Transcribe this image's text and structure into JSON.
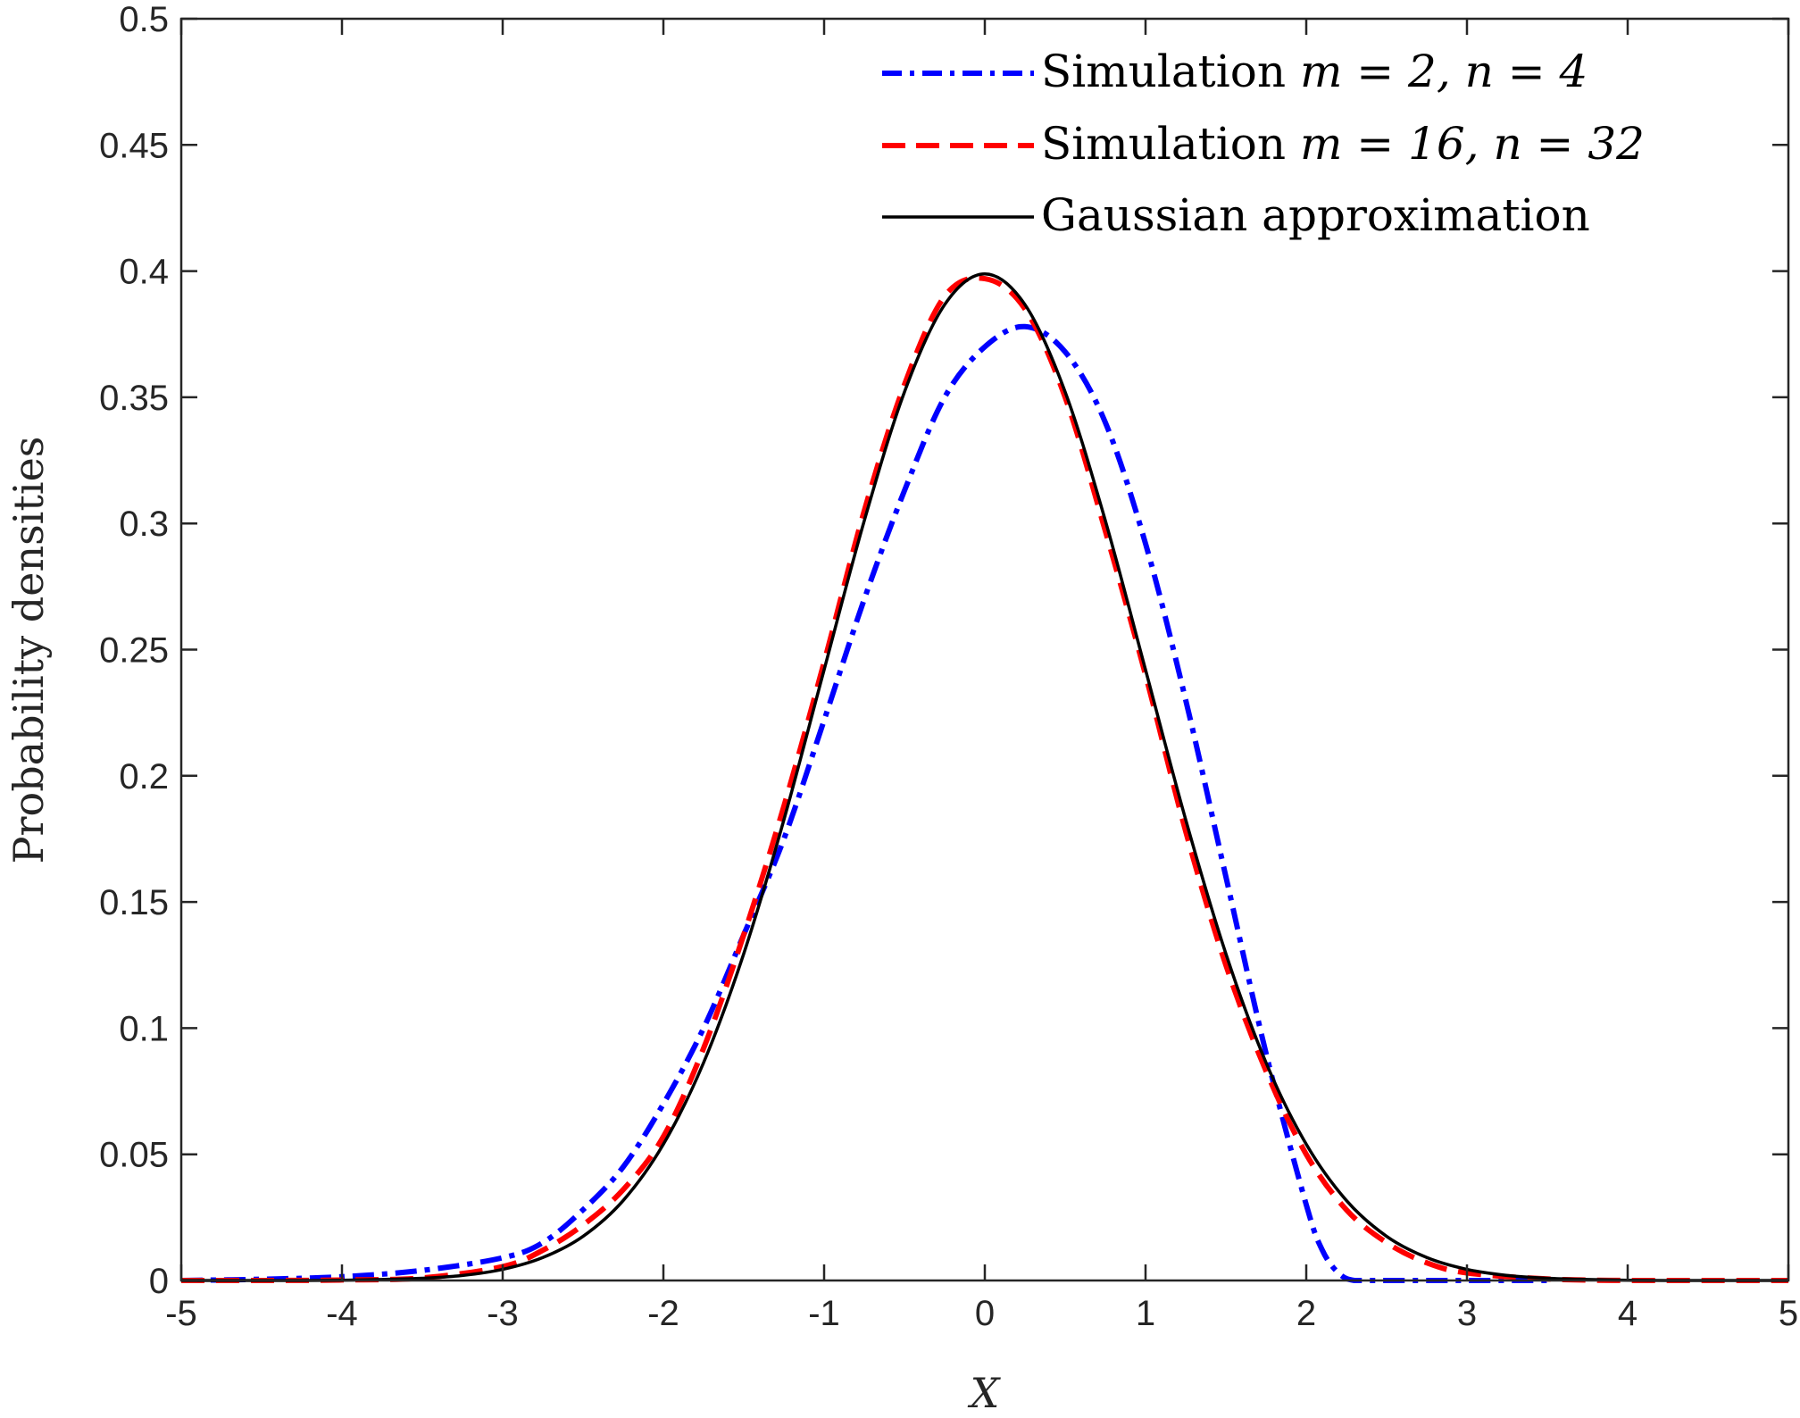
{
  "chart_data": {
    "type": "line",
    "xlabel": "X",
    "ylabel": "Probability densities",
    "xlim": [
      -5,
      5
    ],
    "ylim": [
      0,
      0.5
    ],
    "xticks": [
      -5,
      -4,
      -3,
      -2,
      -1,
      0,
      1,
      2,
      3,
      4,
      5
    ],
    "yticks": [
      0,
      0.05,
      0.1,
      0.15,
      0.2,
      0.25,
      0.3,
      0.35,
      0.4,
      0.45,
      0.5
    ],
    "xtick_labels": [
      "-5",
      "-4",
      "-3",
      "-2",
      "-1",
      "0",
      "1",
      "2",
      "3",
      "4",
      "5"
    ],
    "ytick_labels": [
      "0",
      "0.05",
      "0.1",
      "0.15",
      "0.2",
      "0.25",
      "0.3",
      "0.35",
      "0.4",
      "0.45",
      "0.5"
    ],
    "grid": false,
    "legend_position": "top-right",
    "series": [
      {
        "name": "Simulation m = 2, n = 4",
        "color": "#0000ff",
        "style": "dashdot",
        "x": [
          -5,
          -4.5,
          -4,
          -3.5,
          -3,
          -2.75,
          -2.5,
          -2.25,
          -2,
          -1.75,
          -1.5,
          -1.25,
          -1,
          -0.75,
          -0.5,
          -0.25,
          0,
          0.25,
          0.5,
          0.75,
          1,
          1.25,
          1.5,
          1.75,
          2,
          2.1,
          2.2,
          2.3,
          2.5,
          3,
          3.5
        ],
        "y": [
          0,
          0.0005,
          0.0015,
          0.004,
          0.009,
          0.015,
          0.028,
          0.045,
          0.07,
          0.1,
          0.137,
          0.175,
          0.222,
          0.27,
          0.313,
          0.35,
          0.37,
          0.378,
          0.368,
          0.34,
          0.292,
          0.23,
          0.16,
          0.09,
          0.03,
          0.012,
          0.003,
          0,
          0,
          0,
          0
        ]
      },
      {
        "name": "Simulation m = 16, n = 32",
        "color": "#ff0000",
        "style": "dashed",
        "x": [
          -5,
          -4.5,
          -4,
          -3.5,
          -3,
          -2.75,
          -2.5,
          -2.25,
          -2,
          -1.75,
          -1.5,
          -1.25,
          -1,
          -0.75,
          -0.5,
          -0.25,
          0,
          0.25,
          0.5,
          0.75,
          1,
          1.25,
          1.5,
          1.75,
          2,
          2.25,
          2.5,
          2.75,
          3,
          3.5,
          4,
          4.5,
          5
        ],
        "y": [
          0,
          0,
          0.0002,
          0.001,
          0.0055,
          0.012,
          0.022,
          0.036,
          0.057,
          0.092,
          0.137,
          0.188,
          0.245,
          0.305,
          0.355,
          0.39,
          0.397,
          0.385,
          0.35,
          0.297,
          0.24,
          0.178,
          0.125,
          0.083,
          0.05,
          0.028,
          0.015,
          0.007,
          0.003,
          0.0006,
          0,
          0,
          0
        ]
      },
      {
        "name": "Gaussian approximation",
        "color": "#000000",
        "style": "solid",
        "x": [
          -5,
          -4.75,
          -4.5,
          -4.25,
          -4,
          -3.75,
          -3.5,
          -3.25,
          -3,
          -2.75,
          -2.5,
          -2.25,
          -2,
          -1.75,
          -1.5,
          -1.25,
          -1,
          -0.75,
          -0.5,
          -0.25,
          0,
          0.25,
          0.5,
          0.75,
          1,
          1.25,
          1.5,
          1.75,
          2,
          2.25,
          2.5,
          2.75,
          3,
          3.25,
          3.5,
          3.75,
          4,
          4.25,
          4.5,
          4.75,
          5
        ],
        "y": [
          0,
          0,
          0,
          0,
          0.0001,
          0.0004,
          0.0009,
          0.002,
          0.0044,
          0.0091,
          0.0175,
          0.0317,
          0.054,
          0.0863,
          0.1295,
          0.1826,
          0.242,
          0.3011,
          0.3521,
          0.3867,
          0.3989,
          0.3867,
          0.3521,
          0.3011,
          0.242,
          0.1826,
          0.1295,
          0.0863,
          0.054,
          0.0317,
          0.0175,
          0.0091,
          0.0044,
          0.002,
          0.0009,
          0.0004,
          0.0001,
          0,
          0,
          0,
          0
        ]
      }
    ],
    "legend": [
      {
        "prefix": "Simulation ",
        "math": "m = 2, n = 4"
      },
      {
        "prefix": "Simulation ",
        "math": "m = 16, n = 32"
      },
      {
        "prefix": "Gaussian approximation",
        "math": ""
      }
    ]
  }
}
